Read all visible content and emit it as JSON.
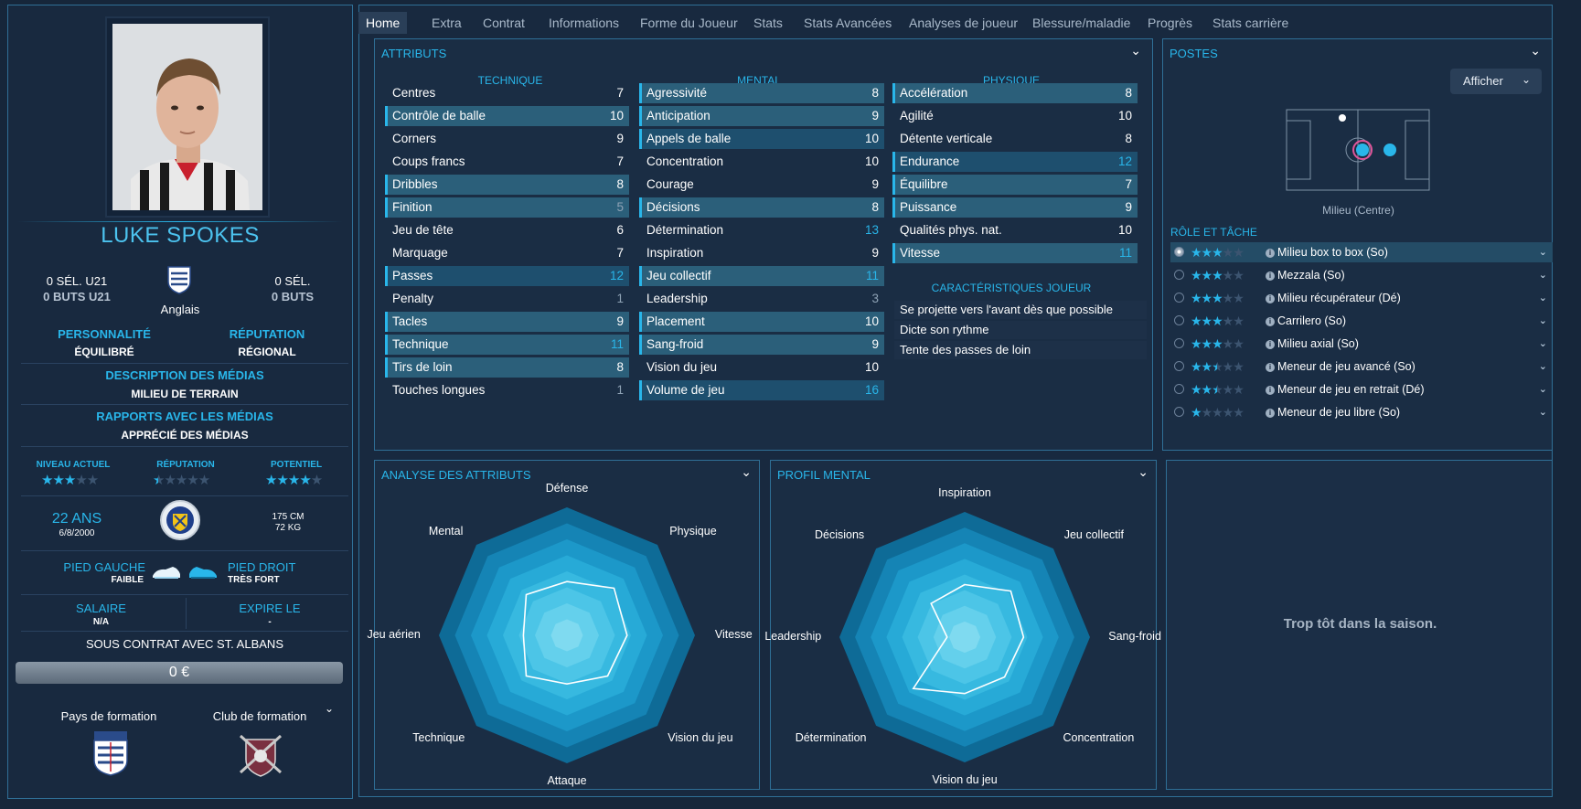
{
  "player": {
    "name": "LUKE SPOKES",
    "u21_caps": "0 SÉL. U21",
    "u21_goals": "0 BUTS U21",
    "nationality": "Anglais",
    "caps": "0 SÉL.",
    "goals": "0 BUTS",
    "personality_label": "PERSONNALITÉ",
    "personality": "ÉQUILIBRÉ",
    "reputation_label": "RÉPUTATION",
    "reputation": "RÉGIONAL",
    "media_desc_label": "DESCRIPTION DES MÉDIAS",
    "media_desc": "MILIEU DE TERRAIN",
    "media_rel_label": "RAPPORTS AVEC LES MÉDIAS",
    "media_rel": "APPRÉCIÉ DES MÉDIAS",
    "current_level_label": "NIVEAU ACTUEL",
    "current_level_stars": 3,
    "reputation_stars_label": "RÉPUTATION",
    "reputation_stars": 0.5,
    "potential_label": "POTENTIEL",
    "potential_stars": 4,
    "age": "22 ANS",
    "dob": "6/8/2000",
    "height": "175 CM",
    "weight": "72 KG",
    "left_foot_label": "PIED GAUCHE",
    "left_foot": "FAIBLE",
    "right_foot_label": "PIED DROIT",
    "right_foot": "TRÈS FORT",
    "salary_label": "SALAIRE",
    "salary": "N/A",
    "expires_label": "EXPIRE LE",
    "expires": "-",
    "contract": "SOUS CONTRAT AVEC ST. ALBANS",
    "value": "0 €",
    "training_country_label": "Pays de formation",
    "training_club_label": "Club de formation"
  },
  "tabs": [
    "Home",
    "Extra",
    "Contrat",
    "Informations",
    "Forme du Joueur",
    "Stats",
    "Stats Avancées",
    "Analyses de joueur",
    "Blessure/maladie",
    "Progrès",
    "Stats carrière"
  ],
  "attributes": {
    "title": "ATTRIBUTS",
    "technique_label": "TECHNIQUE",
    "mental_label": "MENTAL",
    "physique_label": "PHYSIQUE",
    "technique": [
      {
        "name": "Centres",
        "value": "7",
        "hl": "",
        "vc": ""
      },
      {
        "name": "Contrôle de balle",
        "value": "10",
        "hl": "hl",
        "vc": ""
      },
      {
        "name": "Corners",
        "value": "9",
        "hl": "",
        "vc": ""
      },
      {
        "name": "Coups francs",
        "value": "7",
        "hl": "",
        "vc": ""
      },
      {
        "name": "Dribbles",
        "value": "8",
        "hl": "hl",
        "vc": ""
      },
      {
        "name": "Finition",
        "value": "5",
        "hl": "hl",
        "vc": "g"
      },
      {
        "name": "Jeu de tête",
        "value": "6",
        "hl": "",
        "vc": ""
      },
      {
        "name": "Marquage",
        "value": "7",
        "hl": "",
        "vc": ""
      },
      {
        "name": "Passes",
        "value": "12",
        "hl": "hl2",
        "vc": "c"
      },
      {
        "name": "Penalty",
        "value": "1",
        "hl": "",
        "vc": "g"
      },
      {
        "name": "Tacles",
        "value": "9",
        "hl": "hl",
        "vc": ""
      },
      {
        "name": "Technique",
        "value": "11",
        "hl": "hl",
        "vc": "c"
      },
      {
        "name": "Tirs de loin",
        "value": "8",
        "hl": "hl",
        "vc": ""
      },
      {
        "name": "Touches longues",
        "value": "1",
        "hl": "",
        "vc": "g"
      }
    ],
    "mental": [
      {
        "name": "Agressivité",
        "value": "8",
        "hl": "hl",
        "vc": ""
      },
      {
        "name": "Anticipation",
        "value": "9",
        "hl": "hl",
        "vc": ""
      },
      {
        "name": "Appels de balle",
        "value": "10",
        "hl": "hl2",
        "vc": ""
      },
      {
        "name": "Concentration",
        "value": "10",
        "hl": "",
        "vc": ""
      },
      {
        "name": "Courage",
        "value": "9",
        "hl": "",
        "vc": ""
      },
      {
        "name": "Décisions",
        "value": "8",
        "hl": "hl",
        "vc": ""
      },
      {
        "name": "Détermination",
        "value": "13",
        "hl": "",
        "vc": "c"
      },
      {
        "name": "Inspiration",
        "value": "9",
        "hl": "",
        "vc": ""
      },
      {
        "name": "Jeu collectif",
        "value": "11",
        "hl": "hl",
        "vc": "c"
      },
      {
        "name": "Leadership",
        "value": "3",
        "hl": "",
        "vc": "g"
      },
      {
        "name": "Placement",
        "value": "10",
        "hl": "hl",
        "vc": ""
      },
      {
        "name": "Sang-froid",
        "value": "9",
        "hl": "hl",
        "vc": ""
      },
      {
        "name": "Vision du jeu",
        "value": "10",
        "hl": "",
        "vc": ""
      },
      {
        "name": "Volume de jeu",
        "value": "16",
        "hl": "hl2",
        "vc": "c"
      }
    ],
    "physique": [
      {
        "name": "Accélération",
        "value": "8",
        "hl": "hl",
        "vc": ""
      },
      {
        "name": "Agilité",
        "value": "10",
        "hl": "",
        "vc": ""
      },
      {
        "name": "Détente verticale",
        "value": "8",
        "hl": "",
        "vc": ""
      },
      {
        "name": "Endurance",
        "value": "12",
        "hl": "hl2",
        "vc": "c"
      },
      {
        "name": "Équilibre",
        "value": "7",
        "hl": "hl",
        "vc": ""
      },
      {
        "name": "Puissance",
        "value": "9",
        "hl": "hl",
        "vc": ""
      },
      {
        "name": "Qualités phys. nat.",
        "value": "10",
        "hl": "",
        "vc": ""
      },
      {
        "name": "Vitesse",
        "value": "11",
        "hl": "hl",
        "vc": "c"
      }
    ],
    "traits_label": "CARACTÉRISTIQUES JOUEUR",
    "traits": [
      "Se projette vers l'avant dès que possible",
      "Dicte son rythme",
      "Tente des passes de loin"
    ]
  },
  "positions": {
    "title": "POSTES",
    "show_button": "Afficher",
    "position_name": "Milieu (Centre)",
    "role_label": "RÔLE ET TÂCHE",
    "roles": [
      {
        "name": "Milieu box to box (So)",
        "stars": 3,
        "selected": true
      },
      {
        "name": "Mezzala (So)",
        "stars": 3,
        "selected": false
      },
      {
        "name": "Milieu récupérateur (Dé)",
        "stars": 3,
        "selected": false
      },
      {
        "name": "Carrilero (So)",
        "stars": 3,
        "selected": false
      },
      {
        "name": "Milieu axial (So)",
        "stars": 3,
        "selected": false
      },
      {
        "name": "Meneur de jeu avancé (So)",
        "stars": 2.5,
        "selected": false
      },
      {
        "name": "Meneur de jeu en retrait (Dé)",
        "stars": 2.5,
        "selected": false
      },
      {
        "name": "Meneur de jeu libre (So)",
        "stars": 1,
        "selected": false
      }
    ]
  },
  "analysis": {
    "title": "ANALYSE DES ATTRIBUTS",
    "axes": [
      "Défense",
      "Physique",
      "Vitesse",
      "Vision du jeu",
      "Attaque",
      "Technique",
      "Jeu aérien",
      "Mental"
    ],
    "values": [
      0.42,
      0.52,
      0.47,
      0.45,
      0.38,
      0.45,
      0.34,
      0.45
    ]
  },
  "mental_profile": {
    "title": "PROFIL MENTAL",
    "axes": [
      "Inspiration",
      "Jeu collectif",
      "Sang-froid",
      "Concentration",
      "Vision du jeu",
      "Détermination",
      "Leadership",
      "Décisions"
    ],
    "values": [
      0.42,
      0.52,
      0.47,
      0.45,
      0.45,
      0.58,
      0.14,
      0.38
    ]
  },
  "empty_panel": {
    "message": "Trop tôt dans la saison."
  },
  "colors": {
    "accent": "#29b6ea",
    "background": "#16263a",
    "panel": "#1a2d44"
  }
}
